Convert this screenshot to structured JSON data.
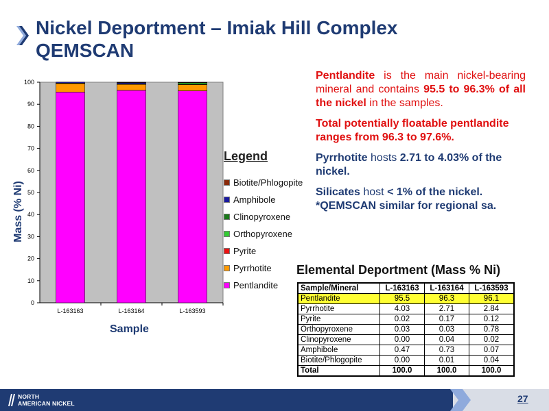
{
  "slide": {
    "title_line1": "Nickel Deportment – Imiak Hill Complex",
    "title_line2": "QEMSCAN",
    "page_number": "27",
    "logo_line1": "NORTH",
    "logo_line2": "AMERICAN NICKEL"
  },
  "legend_title": "Legend",
  "notes": {
    "n1_a": "Pentlandite",
    "n1_b": " is the main nickel-bearing mineral and contains ",
    "n1_c": "95.5 to 96.3% of all the nickel",
    "n1_d": " in the samples.",
    "n2": "Total potentially floatable pentlandite ranges from 96.3 to 97.6%.",
    "n3_a": "Pyrrhotite",
    "n3_b": " hosts ",
    "n3_c": "2.71 to 4.03% of the nickel.",
    "n4_a": "Silicates",
    "n4_b": " host ",
    "n4_c": "< 1% of the nickel.",
    "n5": "*QEMSCAN similar for regional sa."
  },
  "table": {
    "title": "Elemental Deportment (Mass % Ni)",
    "header": [
      "Sample/Mineral",
      "L-163163",
      "L-163164",
      "L-163593"
    ],
    "rows": [
      {
        "mineral": "Pentlandite",
        "values": [
          "95.5",
          "96.3",
          "96.1"
        ],
        "highlight": true
      },
      {
        "mineral": "Pyrrhotite",
        "values": [
          "4.03",
          "2.71",
          "2.84"
        ]
      },
      {
        "mineral": "Pyrite",
        "values": [
          "0.02",
          "0.17",
          "0.12"
        ]
      },
      {
        "mineral": "Orthopyroxene",
        "values": [
          "0.03",
          "0.03",
          "0.78"
        ]
      },
      {
        "mineral": "Clinopyroxene",
        "values": [
          "0.00",
          "0.04",
          "0.02"
        ]
      },
      {
        "mineral": "Amphibole",
        "values": [
          "0.47",
          "0.73",
          "0.07"
        ]
      },
      {
        "mineral": "Biotite/Phlogopite",
        "values": [
          "0.00",
          "0.01",
          "0.04"
        ]
      },
      {
        "mineral": "Total",
        "values": [
          "100.0",
          "100.0",
          "100.0"
        ],
        "total": true
      }
    ]
  },
  "chart_data": {
    "type": "bar",
    "stacked": true,
    "categories": [
      "L-163163",
      "L-163164",
      "L-163593"
    ],
    "xlabel": "Sample",
    "ylabel": "Mass (% Ni)",
    "ylim": [
      0,
      100
    ],
    "yticks": [
      0,
      10,
      20,
      30,
      40,
      50,
      60,
      70,
      80,
      90,
      100
    ],
    "grid": false,
    "plot_background": "#c0c0c0",
    "series": [
      {
        "name": "Pentlandite",
        "color": "#ff00ff",
        "values": [
          95.5,
          96.3,
          96.1
        ]
      },
      {
        "name": "Pyrrhotite",
        "color": "#ff9900",
        "values": [
          4.03,
          2.71,
          2.84
        ]
      },
      {
        "name": "Pyrite",
        "color": "#ee1111",
        "values": [
          0.02,
          0.17,
          0.12
        ]
      },
      {
        "name": "Orthopyroxene",
        "color": "#33cc33",
        "values": [
          0.03,
          0.03,
          0.78
        ]
      },
      {
        "name": "Clinopyroxene",
        "color": "#1a7a1a",
        "values": [
          0.0,
          0.04,
          0.02
        ]
      },
      {
        "name": "Amphibole",
        "color": "#1a1aa0",
        "values": [
          0.47,
          0.73,
          0.07
        ]
      },
      {
        "name": "Biotite/Phlogopite",
        "color": "#8b2a0a",
        "values": [
          0.0,
          0.01,
          0.04
        ]
      }
    ]
  }
}
